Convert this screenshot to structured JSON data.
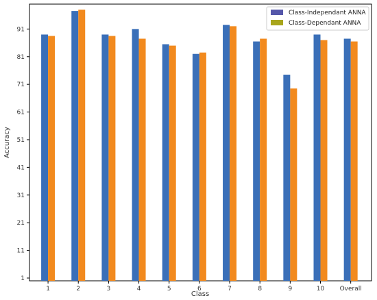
{
  "chart_data": {
    "type": "bar",
    "xlabel": "Class",
    "ylabel": "Accuracy",
    "categories": [
      "1",
      "2",
      "3",
      "4",
      "5",
      "6",
      "7",
      "8",
      "9",
      "10",
      "Overall"
    ],
    "yticks": [
      1,
      11,
      21,
      31,
      41,
      51,
      61,
      71,
      81,
      91
    ],
    "ylim": [
      0,
      100
    ],
    "grid": false,
    "legend_position": "top-right",
    "series": [
      {
        "name": "Class-Independant ANNA",
        "legend_color": "#5557aa",
        "color": "#3a6fb8",
        "values": [
          89.0,
          97.5,
          89.0,
          91.0,
          85.5,
          82.0,
          92.5,
          86.5,
          74.5,
          89.0,
          87.5
        ]
      },
      {
        "name": "Class-Dependant ANNA",
        "legend_color": "#a8a51c",
        "color": "#f28a1e",
        "values": [
          88.5,
          98.0,
          88.5,
          87.5,
          85.0,
          82.5,
          92.0,
          87.5,
          69.5,
          87.0,
          86.5
        ]
      }
    ]
  }
}
